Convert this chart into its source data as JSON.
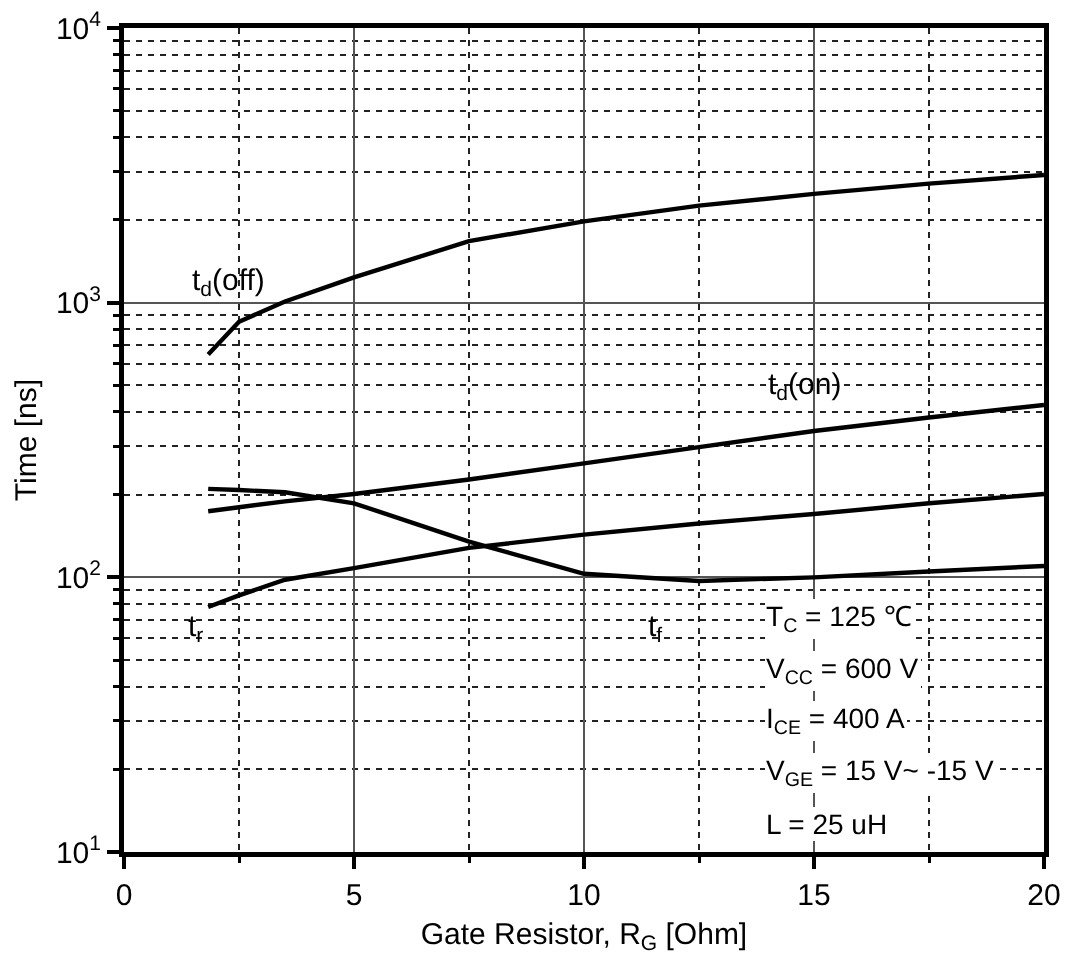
{
  "chart_data": {
    "type": "line",
    "xlabel": "Gate Resistor, R$_{G}$ [Ohm]",
    "ylabel": "Time [ns]",
    "x": [
      1.83,
      2.5,
      3.5,
      5,
      7.5,
      10,
      12.5,
      15,
      17.5,
      20
    ],
    "series": [
      {
        "name": "t$_{d}$(off)",
        "color": "#000000",
        "values": [
          647,
          852,
          1010,
          1236,
          1675,
          1978,
          2255,
          2490,
          2712,
          2917
        ]
      },
      {
        "name": "t$_{d}$(on)",
        "color": "#000000",
        "values": [
          174,
          180,
          189,
          201,
          227,
          260,
          298,
          341,
          382,
          424
        ]
      },
      {
        "name": "t$_{r}$",
        "color": "#000000",
        "values": [
          78,
          86,
          98,
          108,
          128,
          143,
          157,
          170,
          186,
          201
        ]
      },
      {
        "name": "t$_{f}$",
        "color": "#000000",
        "values": [
          210,
          208,
          204,
          186,
          135,
          103,
          97,
          100,
          105,
          110
        ]
      }
    ],
    "xlim": [
      0,
      20
    ],
    "xticks": [
      0,
      {
        "value": 2.5,
        "label": null
      },
      5,
      {
        "value": 7.5,
        "label": null
      },
      10,
      {
        "value": 12.5,
        "label": null
      },
      15,
      {
        "value": 17.5,
        "label": null
      },
      20
    ],
    "ylim": [
      10,
      10000
    ],
    "yticks": [
      {
        "value": 10,
        "label": "10$^{1}$"
      },
      {
        "value": 20,
        "label": null
      },
      {
        "value": 30,
        "label": null
      },
      {
        "value": 40,
        "label": null
      },
      {
        "value": 50,
        "label": null
      },
      {
        "value": 60,
        "label": null
      },
      {
        "value": 70,
        "label": null
      },
      {
        "value": 80,
        "label": null
      },
      {
        "value": 90,
        "label": null
      },
      {
        "value": 100,
        "label": "10$^{2}$"
      },
      {
        "value": 200,
        "label": null
      },
      {
        "value": 300,
        "label": null
      },
      {
        "value": 400,
        "label": null
      },
      {
        "value": 500,
        "label": null
      },
      {
        "value": 600,
        "label": null
      },
      {
        "value": 700,
        "label": null
      },
      {
        "value": 800,
        "label": null
      },
      {
        "value": 900,
        "label": null
      },
      {
        "value": 1000,
        "label": "10$^{3}$"
      },
      {
        "value": 2000,
        "label": null
      },
      {
        "value": 3000,
        "label": null
      },
      {
        "value": 4000,
        "label": null
      },
      {
        "value": 5000,
        "label": null
      },
      {
        "value": 6000,
        "label": null
      },
      {
        "value": 7000,
        "label": null
      },
      {
        "value": 8000,
        "label": null
      },
      {
        "value": 9000,
        "label": null
      },
      {
        "value": 10000,
        "label": "10$^{4}$"
      }
    ],
    "log": "y",
    "grid": true,
    "marker": "none",
    "line_style": "solid",
    "annotations": [
      "T$_{C}$ = 125 ℃",
      "V$_{CC}$ = 600 V",
      "I$_{CE}$ = 400 A",
      "V$_{GE}$ = 15 V~ -15 V",
      "L = 25 uH"
    ]
  }
}
